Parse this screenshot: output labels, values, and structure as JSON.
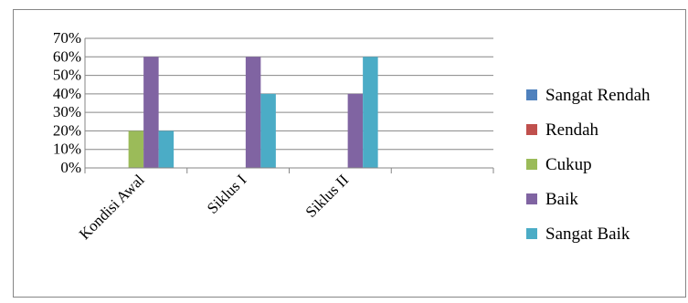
{
  "chart_data": {
    "type": "bar",
    "categories": [
      "Kondisi Awal",
      "Siklus I",
      "Siklus II"
    ],
    "series": [
      {
        "name": "Sangat Rendah",
        "values": [
          0,
          0,
          0
        ],
        "color": "#4f81bd"
      },
      {
        "name": "Rendah",
        "values": [
          0,
          0,
          0
        ],
        "color": "#c0504d"
      },
      {
        "name": "Cukup",
        "values": [
          20,
          0,
          0
        ],
        "color": "#9bbb59"
      },
      {
        "name": "Baik",
        "values": [
          60,
          60,
          40
        ],
        "color": "#8064a2"
      },
      {
        "name": "Sangat Baik",
        "values": [
          20,
          40,
          60
        ],
        "color": "#4bacc6"
      }
    ],
    "yticks": [
      "0%",
      "10%",
      "20%",
      "30%",
      "40%",
      "50%",
      "60%",
      "70%"
    ],
    "ylim": [
      0,
      70
    ],
    "grid": true,
    "legend_position": "right",
    "title": "",
    "xlabel": "",
    "ylabel": ""
  }
}
